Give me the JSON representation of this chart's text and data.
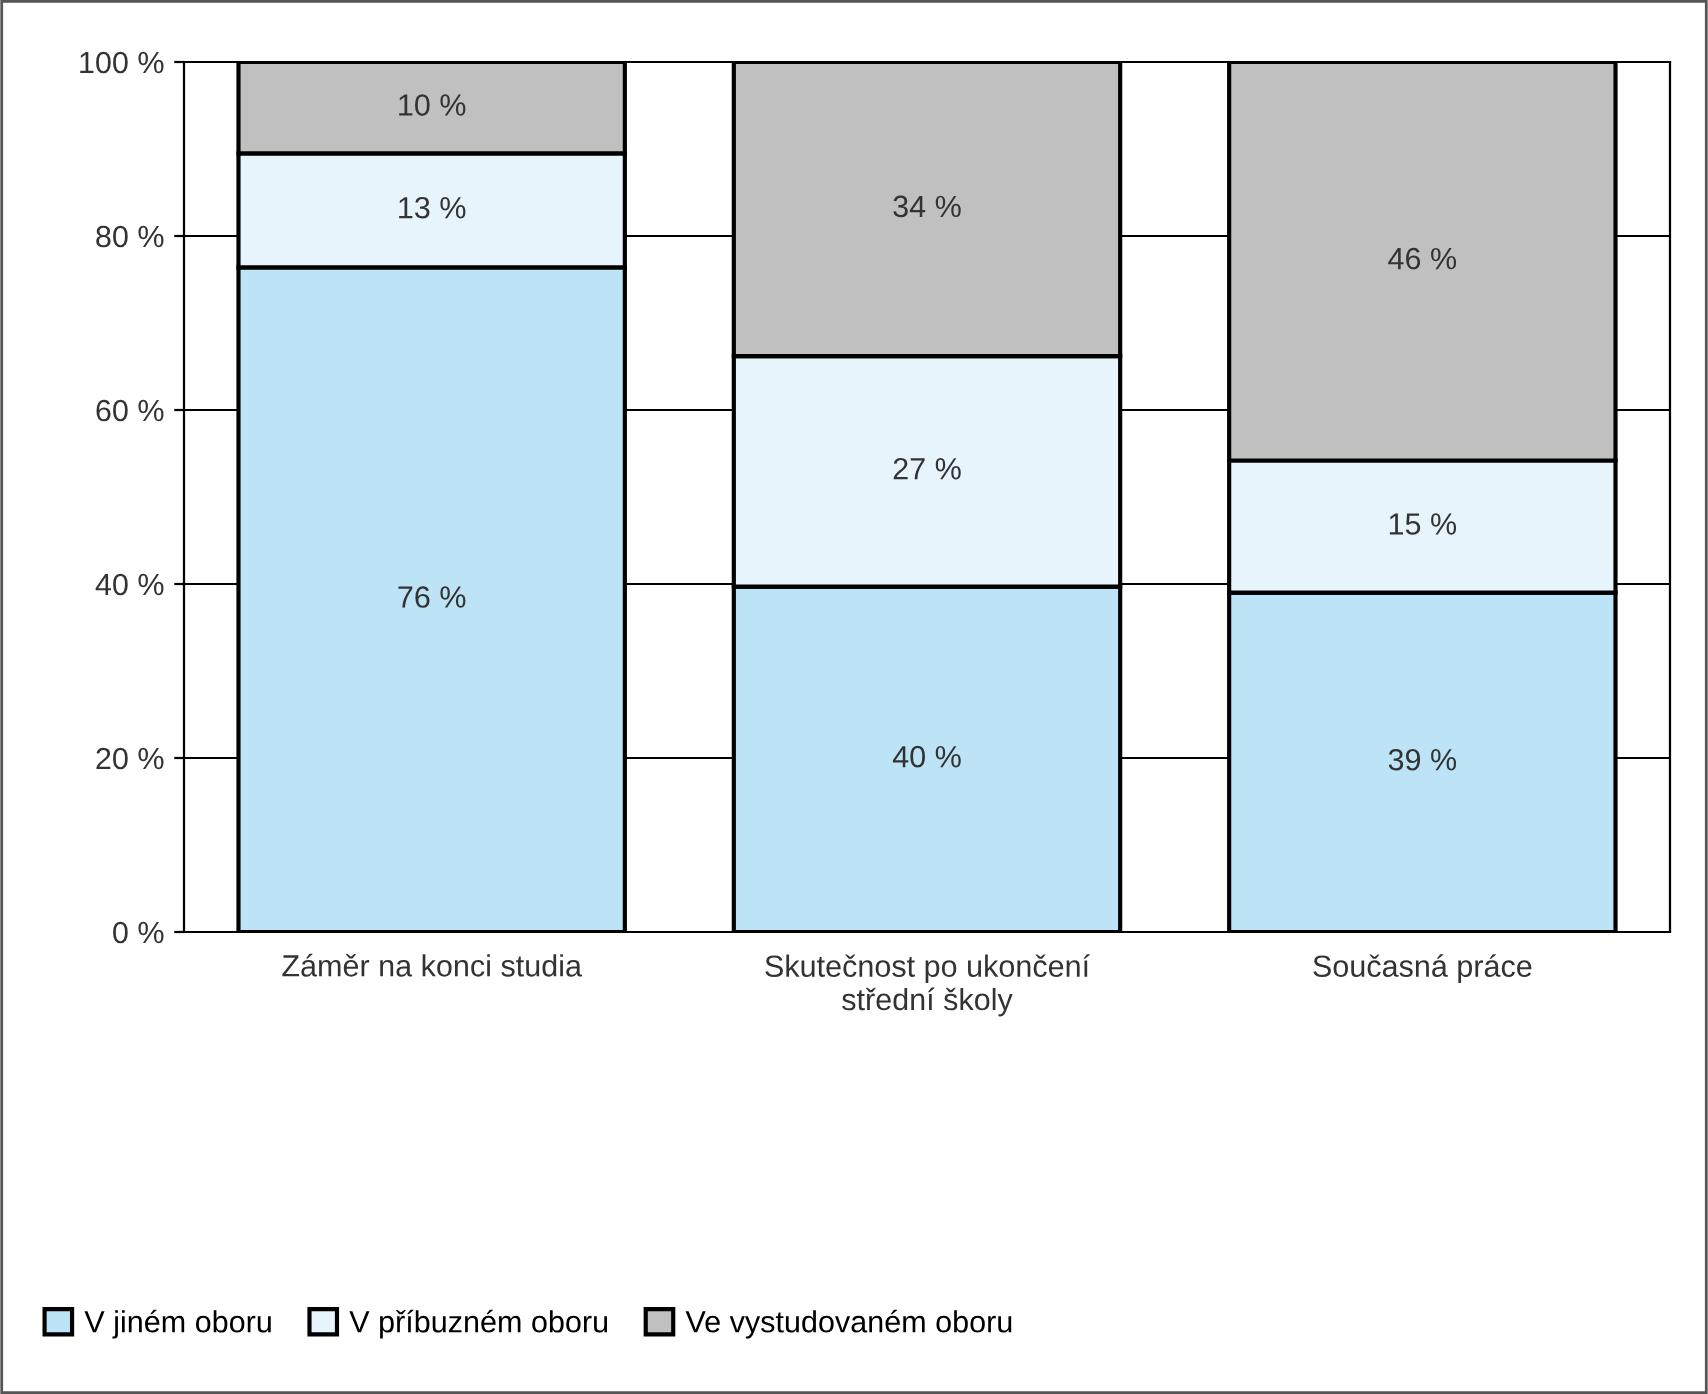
{
  "chart_data": {
    "type": "bar",
    "stacked": true,
    "categories": [
      "Záměr na konci studia",
      "Skutečnost po ukončení\nstřední školy",
      "Současná práce"
    ],
    "series": [
      {
        "name": "V jiném oboru",
        "color": "#bde3f7",
        "values": [
          76.4,
          39.7,
          39.0
        ]
      },
      {
        "name": "V příbuzném oboru",
        "color": "#e8f4fc",
        "values": [
          13.1,
          26.5,
          15.2
        ]
      },
      {
        "name": "Ve vystudovaném oboru",
        "color": "#c0c0c0",
        "values": [
          10.5,
          33.8,
          45.8
        ]
      }
    ],
    "ylim": [
      0,
      100
    ],
    "yticks": [
      {
        "value": 0,
        "label": "0 %"
      },
      {
        "value": 20,
        "label": "20 %"
      },
      {
        "value": 40,
        "label": "40 %"
      },
      {
        "value": 60,
        "label": "60 %"
      },
      {
        "value": 80,
        "label": "80 %"
      },
      {
        "value": 100,
        "label": "100 %"
      }
    ],
    "value_labels": [
      [
        "76 %",
        "40 %",
        "39 %"
      ],
      [
        "13 %",
        "27 %",
        "15 %"
      ],
      [
        "10 %",
        "34 %",
        "46 %"
      ]
    ],
    "grid": "y",
    "legend": "bottom left"
  }
}
